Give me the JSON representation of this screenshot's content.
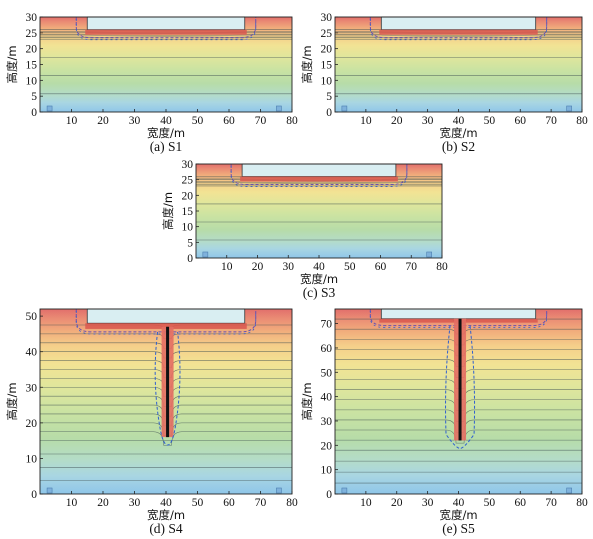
{
  "chart_data": [
    {
      "type": "heatmap",
      "caption": "(a) S1",
      "xlabel": "宽度/m",
      "ylabel": "高度/m",
      "xlim": [
        0,
        80
      ],
      "ylim": [
        0,
        30
      ],
      "xticks": [
        10,
        20,
        30,
        40,
        50,
        60,
        70,
        80
      ],
      "yticks": [
        0,
        5,
        10,
        15,
        20,
        25,
        30
      ],
      "excavation": {
        "x": [
          15,
          65
        ],
        "top": 30,
        "bottom": 26
      },
      "wall": null,
      "dense_band": [
        23,
        30
      ]
    },
    {
      "type": "heatmap",
      "caption": "(b) S2",
      "xlabel": "宽度/m",
      "ylabel": "高度/m",
      "xlim": [
        0,
        80
      ],
      "ylim": [
        0,
        30
      ],
      "xticks": [
        10,
        20,
        30,
        40,
        50,
        60,
        70,
        80
      ],
      "yticks": [
        0,
        5,
        10,
        15,
        20,
        25,
        30
      ],
      "excavation": {
        "x": [
          15,
          65
        ],
        "top": 30,
        "bottom": 26
      },
      "wall": null,
      "dense_band": [
        23,
        30
      ]
    },
    {
      "type": "heatmap",
      "caption": "(c) S3",
      "xlabel": "宽度/m",
      "ylabel": "高度/m",
      "xlim": [
        0,
        80
      ],
      "ylim": [
        0,
        30
      ],
      "xticks": [
        10,
        20,
        30,
        40,
        50,
        60,
        70,
        80
      ],
      "yticks": [
        0,
        5,
        10,
        15,
        20,
        25,
        30
      ],
      "excavation": {
        "x": [
          15,
          65
        ],
        "top": 30,
        "bottom": 26
      },
      "wall": null,
      "dense_band": [
        23,
        30
      ]
    },
    {
      "type": "heatmap",
      "caption": "(d) S4",
      "xlabel": "宽度/m",
      "ylabel": "高度/m",
      "xlim": [
        0,
        80
      ],
      "ylim": [
        0,
        52
      ],
      "xticks": [
        10,
        20,
        30,
        40,
        50,
        60,
        70,
        80
      ],
      "yticks": [
        0,
        10,
        20,
        30,
        40,
        50
      ],
      "excavation": {
        "x": [
          15,
          65
        ],
        "top": 52,
        "bottom": 48
      },
      "wall": {
        "x": 40.5,
        "top": 47,
        "bottom": 16
      },
      "dense_band": [
        15,
        50
      ]
    },
    {
      "type": "heatmap",
      "caption": "(e) S5",
      "xlabel": "宽度/m",
      "ylabel": "高度/m",
      "xlim": [
        0,
        80
      ],
      "ylim": [
        0,
        76
      ],
      "xticks": [
        10,
        20,
        30,
        40,
        50,
        60,
        70,
        80
      ],
      "yticks": [
        0,
        10,
        20,
        30,
        40,
        50,
        60,
        70
      ],
      "excavation": {
        "x": [
          15,
          65
        ],
        "top": 76,
        "bottom": 72
      },
      "wall": {
        "x": 40.5,
        "top": 72,
        "bottom": 22
      },
      "dense_band": [
        18,
        76
      ]
    }
  ]
}
